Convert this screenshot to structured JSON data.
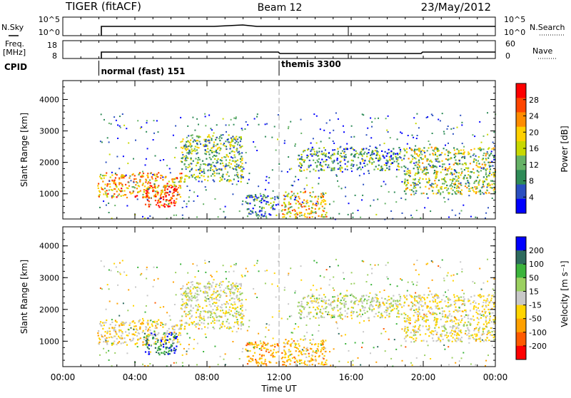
{
  "header": {
    "radar": "TIGER (fitACF)",
    "beam": "Beam 12",
    "date": "23/May/2012"
  },
  "top_panels": {
    "nsky_label": "N.Sky",
    "nsky_ticks": [
      "10^5",
      "10^0"
    ],
    "nsearch_label": "N.Search",
    "nsearch_ticks": [
      "10^5",
      "10^0"
    ],
    "freq_label_1": "Freq.",
    "freq_label_2": "[MHz]",
    "freq_ticks": [
      "18",
      "8"
    ],
    "nave_label": "Nave",
    "nave_ticks": [
      "60",
      "0"
    ],
    "cpid_label": "CPID",
    "cpid_modes": [
      {
        "label": "normal (fast) 151",
        "start_hour": 2
      },
      {
        "label": "themis 3300",
        "start_hour": 12
      }
    ]
  },
  "x_axis": {
    "label": "Time UT",
    "ticks": [
      "00:00",
      "04:00",
      "08:00",
      "12:00",
      "16:00",
      "20:00",
      "00:00"
    ],
    "range_hours": [
      0,
      24
    ]
  },
  "panels": {
    "power": {
      "ylabel": "Slant Range [km]",
      "yticks": [
        "4000",
        "3000",
        "2000",
        "1000"
      ],
      "colorbar_label": "Power [dB]",
      "colorbar_ticks": [
        "28",
        "24",
        "20",
        "16",
        "12",
        "8",
        "4"
      ]
    },
    "velocity": {
      "ylabel": "Slant Range [km]",
      "yticks": [
        "4000",
        "3000",
        "2000",
        "1000"
      ],
      "colorbar_label": "Velocity [m s⁻¹]",
      "colorbar_ticks": [
        "200",
        "100",
        "50",
        "15",
        "-15",
        "-50",
        "-100",
        "-200"
      ]
    }
  },
  "colors": {
    "power_scale": [
      "#0000ff",
      "#2a4fc0",
      "#2e8b57",
      "#66b266",
      "#c8d800",
      "#ffd000",
      "#ff8c00",
      "#ff4500",
      "#ff0000"
    ],
    "velocity_scale": [
      "#ff0000",
      "#ff5a00",
      "#ffa000",
      "#ffd400",
      "#c8c8c8",
      "#9bd060",
      "#3cb43c",
      "#2e6b5e",
      "#0000ff"
    ]
  },
  "chart_data": {
    "type": "heatmap",
    "title": "TIGER (fitACF)",
    "x_range_hours": [
      0,
      24
    ],
    "y_range_km": [
      200,
      4600
    ],
    "power_range_db": [
      0,
      30
    ],
    "velocity_range": [
      -250,
      250
    ],
    "echo_regions": [
      {
        "t0": 1.9,
        "t1": 6.6,
        "r0": 900,
        "r1": 1700,
        "power": 20,
        "velocity": -40
      },
      {
        "t0": 4.4,
        "t1": 6.3,
        "r0": 600,
        "r1": 1300,
        "power": 26,
        "velocity": 170
      },
      {
        "t0": 6.5,
        "t1": 10.0,
        "r0": 1400,
        "r1": 2900,
        "power": 12,
        "velocity": 0
      },
      {
        "t0": 10.1,
        "t1": 12.0,
        "r0": 300,
        "r1": 1000,
        "power": 8,
        "velocity": -100
      },
      {
        "t0": 12.1,
        "t1": 14.6,
        "r0": 250,
        "r1": 1100,
        "power": 18,
        "velocity": -80
      },
      {
        "t0": 13.0,
        "t1": 18.9,
        "r0": 1750,
        "r1": 2500,
        "power": 10,
        "velocity": 15
      },
      {
        "t0": 18.9,
        "t1": 24.0,
        "r0": 1000,
        "r1": 2500,
        "power": 14,
        "velocity": -20
      }
    ]
  }
}
